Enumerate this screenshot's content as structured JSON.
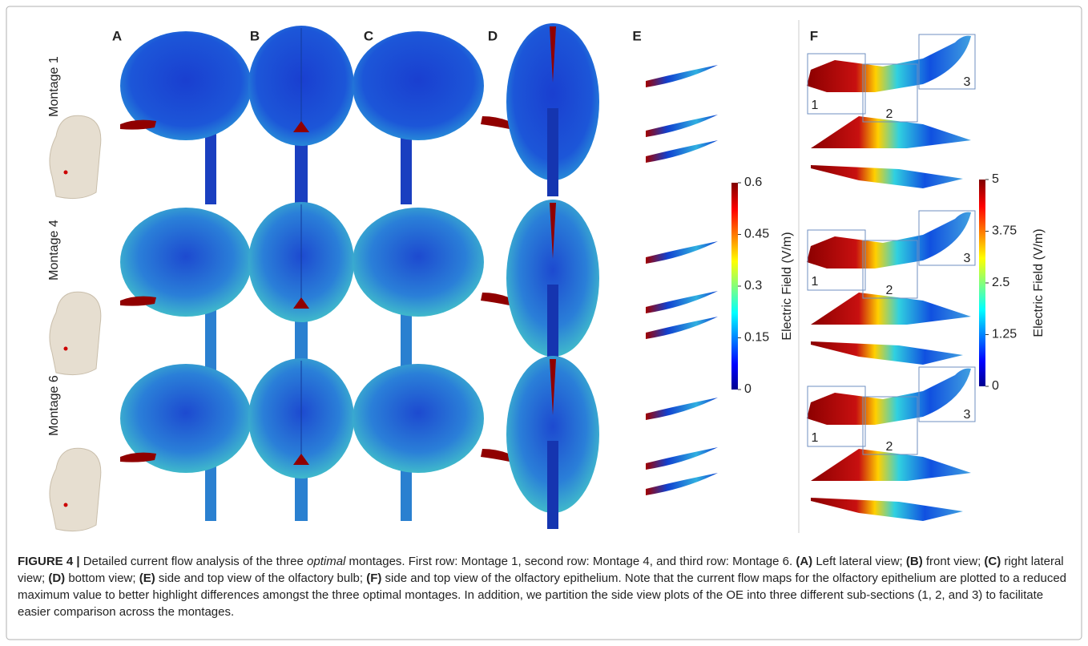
{
  "panels": [
    "A",
    "B",
    "C",
    "D",
    "E",
    "F"
  ],
  "rows": [
    "Montage 1",
    "Montage 4",
    "Montage 6"
  ],
  "subsections": [
    "1",
    "2",
    "3"
  ],
  "colorbars": [
    {
      "label": "Electric Field (V/m)",
      "lim": [
        0,
        0.6
      ],
      "ticks": [
        0.6,
        0.45,
        0.3,
        0.15,
        0
      ]
    },
    {
      "label": "Electric Field (V/m)",
      "lim": [
        0,
        5
      ],
      "ticks": [
        5,
        3.75,
        2.5,
        1.25,
        0
      ]
    }
  ],
  "caption": {
    "segments": [
      {
        "text": "FIGURE 4 |",
        "style": "bold"
      },
      {
        "text": " Detailed current flow analysis of the three ",
        "style": "normal"
      },
      {
        "text": "optimal",
        "style": "italic"
      },
      {
        "text": " montages. First row: Montage 1, second row: Montage 4, and third row: Montage 6. ",
        "style": "normal"
      },
      {
        "text": "(A)",
        "style": "bold"
      },
      {
        "text": " Left lateral view; ",
        "style": "normal"
      },
      {
        "text": "(B)",
        "style": "bold"
      },
      {
        "text": " front view; ",
        "style": "normal"
      },
      {
        "text": "(C)",
        "style": "bold"
      },
      {
        "text": " right lateral view; ",
        "style": "normal"
      },
      {
        "text": "(D)",
        "style": "bold"
      },
      {
        "text": " bottom view; ",
        "style": "normal"
      },
      {
        "text": "(E)",
        "style": "bold"
      },
      {
        "text": " side and top view of the olfactory bulb; ",
        "style": "normal"
      },
      {
        "text": "(F)",
        "style": "bold"
      },
      {
        "text": " side and top view of the olfactory epithelium. Note that the current flow maps for the olfactory epithelium are plotted to a reduced maximum value to better highlight differences amongst the three optimal montages. In addition, we partition the side view plots of the OE into three different sub-sections (1, 2, and 3) to facilitate easier comparison across the montages.",
        "style": "normal"
      }
    ]
  }
}
